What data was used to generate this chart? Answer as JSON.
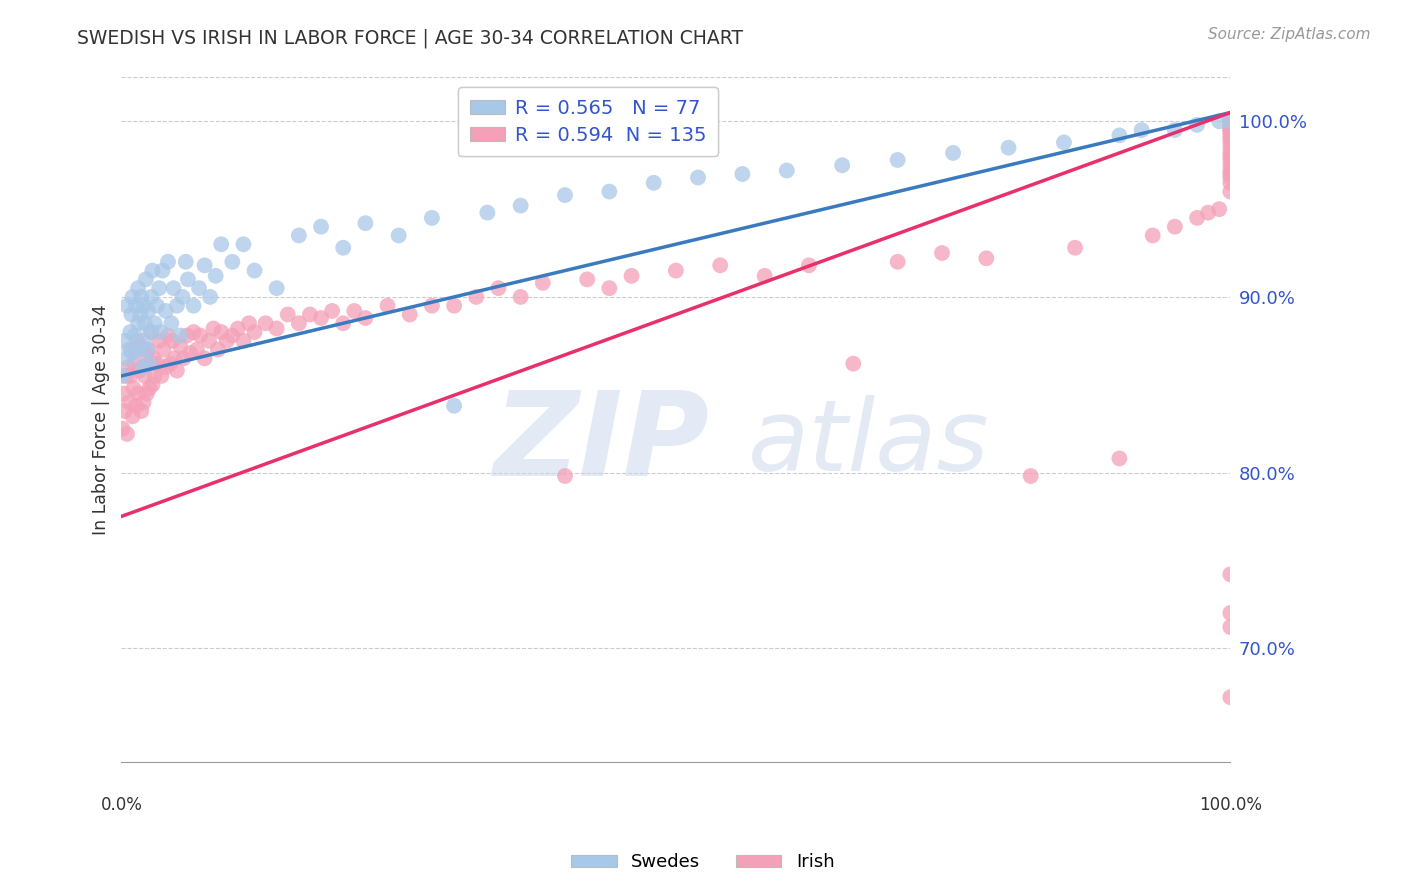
{
  "title": "SWEDISH VS IRISH IN LABOR FORCE | AGE 30-34 CORRELATION CHART",
  "source": "Source: ZipAtlas.com",
  "ylabel": "In Labor Force | Age 30-34",
  "ytick_labels": [
    "70.0%",
    "80.0%",
    "90.0%",
    "100.0%"
  ],
  "ytick_positions": [
    0.7,
    0.8,
    0.9,
    1.0
  ],
  "xmin": 0.0,
  "xmax": 1.0,
  "ymin": 0.635,
  "ymax": 1.025,
  "blue_R": 0.565,
  "blue_N": 77,
  "pink_R": 0.594,
  "pink_N": 135,
  "blue_color": "#a8c8e8",
  "pink_color": "#f4a0b8",
  "blue_line_color": "#3a7abf",
  "pink_line_color": "#e8306a",
  "legend_label_blue": "Swedes",
  "legend_label_pink": "Irish",
  "blue_scatter_x": [
    0.001,
    0.003,
    0.005,
    0.005,
    0.007,
    0.008,
    0.009,
    0.01,
    0.01,
    0.012,
    0.013,
    0.015,
    0.015,
    0.016,
    0.017,
    0.018,
    0.019,
    0.02,
    0.02,
    0.021,
    0.022,
    0.023,
    0.024,
    0.025,
    0.026,
    0.027,
    0.028,
    0.03,
    0.032,
    0.034,
    0.035,
    0.037,
    0.04,
    0.042,
    0.045,
    0.047,
    0.05,
    0.053,
    0.055,
    0.058,
    0.06,
    0.065,
    0.07,
    0.075,
    0.08,
    0.085,
    0.09,
    0.1,
    0.11,
    0.12,
    0.14,
    0.16,
    0.18,
    0.2,
    0.22,
    0.25,
    0.28,
    0.3,
    0.33,
    0.36,
    0.4,
    0.44,
    0.48,
    0.52,
    0.56,
    0.6,
    0.65,
    0.7,
    0.75,
    0.8,
    0.85,
    0.9,
    0.92,
    0.95,
    0.97,
    0.99,
    1.0
  ],
  "blue_scatter_y": [
    0.855,
    0.875,
    0.865,
    0.895,
    0.87,
    0.88,
    0.89,
    0.868,
    0.9,
    0.878,
    0.895,
    0.885,
    0.905,
    0.87,
    0.89,
    0.9,
    0.86,
    0.875,
    0.895,
    0.885,
    0.91,
    0.87,
    0.892,
    0.862,
    0.88,
    0.9,
    0.915,
    0.885,
    0.895,
    0.905,
    0.88,
    0.915,
    0.892,
    0.92,
    0.885,
    0.905,
    0.895,
    0.878,
    0.9,
    0.92,
    0.91,
    0.895,
    0.905,
    0.918,
    0.9,
    0.912,
    0.93,
    0.92,
    0.93,
    0.915,
    0.905,
    0.935,
    0.94,
    0.928,
    0.942,
    0.935,
    0.945,
    0.838,
    0.948,
    0.952,
    0.958,
    0.96,
    0.965,
    0.968,
    0.97,
    0.972,
    0.975,
    0.978,
    0.982,
    0.985,
    0.988,
    0.992,
    0.995,
    0.995,
    0.998,
    1.0,
    1.0
  ],
  "pink_scatter_x": [
    0.001,
    0.002,
    0.003,
    0.004,
    0.005,
    0.006,
    0.007,
    0.008,
    0.009,
    0.01,
    0.011,
    0.012,
    0.013,
    0.014,
    0.015,
    0.016,
    0.017,
    0.018,
    0.019,
    0.02,
    0.021,
    0.022,
    0.023,
    0.024,
    0.025,
    0.026,
    0.027,
    0.028,
    0.029,
    0.03,
    0.032,
    0.034,
    0.036,
    0.038,
    0.04,
    0.042,
    0.044,
    0.046,
    0.048,
    0.05,
    0.053,
    0.056,
    0.059,
    0.062,
    0.065,
    0.068,
    0.071,
    0.075,
    0.079,
    0.083,
    0.087,
    0.09,
    0.095,
    0.1,
    0.105,
    0.11,
    0.115,
    0.12,
    0.13,
    0.14,
    0.15,
    0.16,
    0.17,
    0.18,
    0.19,
    0.2,
    0.21,
    0.22,
    0.24,
    0.26,
    0.28,
    0.3,
    0.32,
    0.34,
    0.36,
    0.38,
    0.4,
    0.42,
    0.44,
    0.46,
    0.5,
    0.54,
    0.58,
    0.62,
    0.66,
    0.7,
    0.74,
    0.78,
    0.82,
    0.86,
    0.9,
    0.93,
    0.95,
    0.97,
    0.98,
    0.99,
    1.0,
    1.0,
    1.0,
    1.0,
    1.0,
    1.0,
    1.0,
    1.0,
    1.0,
    1.0,
    1.0,
    1.0,
    1.0,
    1.0,
    1.0,
    1.0,
    1.0,
    1.0,
    1.0,
    1.0,
    1.0,
    1.0,
    1.0,
    1.0,
    1.0,
    1.0,
    1.0,
    1.0,
    1.0,
    1.0,
    1.0,
    1.0,
    1.0,
    1.0,
    1.0,
    1.0,
    1.0,
    1.0,
    1.0
  ],
  "pink_scatter_y": [
    0.825,
    0.845,
    0.835,
    0.855,
    0.822,
    0.86,
    0.84,
    0.855,
    0.87,
    0.832,
    0.848,
    0.862,
    0.838,
    0.875,
    0.845,
    0.858,
    0.872,
    0.835,
    0.86,
    0.84,
    0.855,
    0.868,
    0.845,
    0.87,
    0.848,
    0.862,
    0.88,
    0.85,
    0.865,
    0.855,
    0.862,
    0.875,
    0.855,
    0.87,
    0.86,
    0.878,
    0.862,
    0.875,
    0.865,
    0.858,
    0.872,
    0.865,
    0.878,
    0.868,
    0.88,
    0.87,
    0.878,
    0.865,
    0.875,
    0.882,
    0.87,
    0.88,
    0.875,
    0.878,
    0.882,
    0.875,
    0.885,
    0.88,
    0.885,
    0.882,
    0.89,
    0.885,
    0.89,
    0.888,
    0.892,
    0.885,
    0.892,
    0.888,
    0.895,
    0.89,
    0.895,
    0.895,
    0.9,
    0.905,
    0.9,
    0.908,
    0.798,
    0.91,
    0.905,
    0.912,
    0.915,
    0.918,
    0.912,
    0.918,
    0.862,
    0.92,
    0.925,
    0.922,
    0.798,
    0.928,
    0.808,
    0.935,
    0.94,
    0.945,
    0.948,
    0.95,
    0.72,
    0.742,
    0.712,
    0.672,
    0.96,
    0.965,
    0.968,
    0.97,
    0.972,
    0.975,
    0.978,
    0.98,
    0.982,
    0.985,
    0.988,
    0.99,
    0.992,
    0.994,
    0.995,
    0.996,
    0.997,
    0.998,
    0.999,
    1.0,
    1.0,
    1.0,
    1.0,
    1.0,
    1.0,
    1.0,
    1.0,
    1.0,
    1.0,
    1.0,
    1.0,
    1.0,
    1.0,
    1.0,
    1.0
  ]
}
